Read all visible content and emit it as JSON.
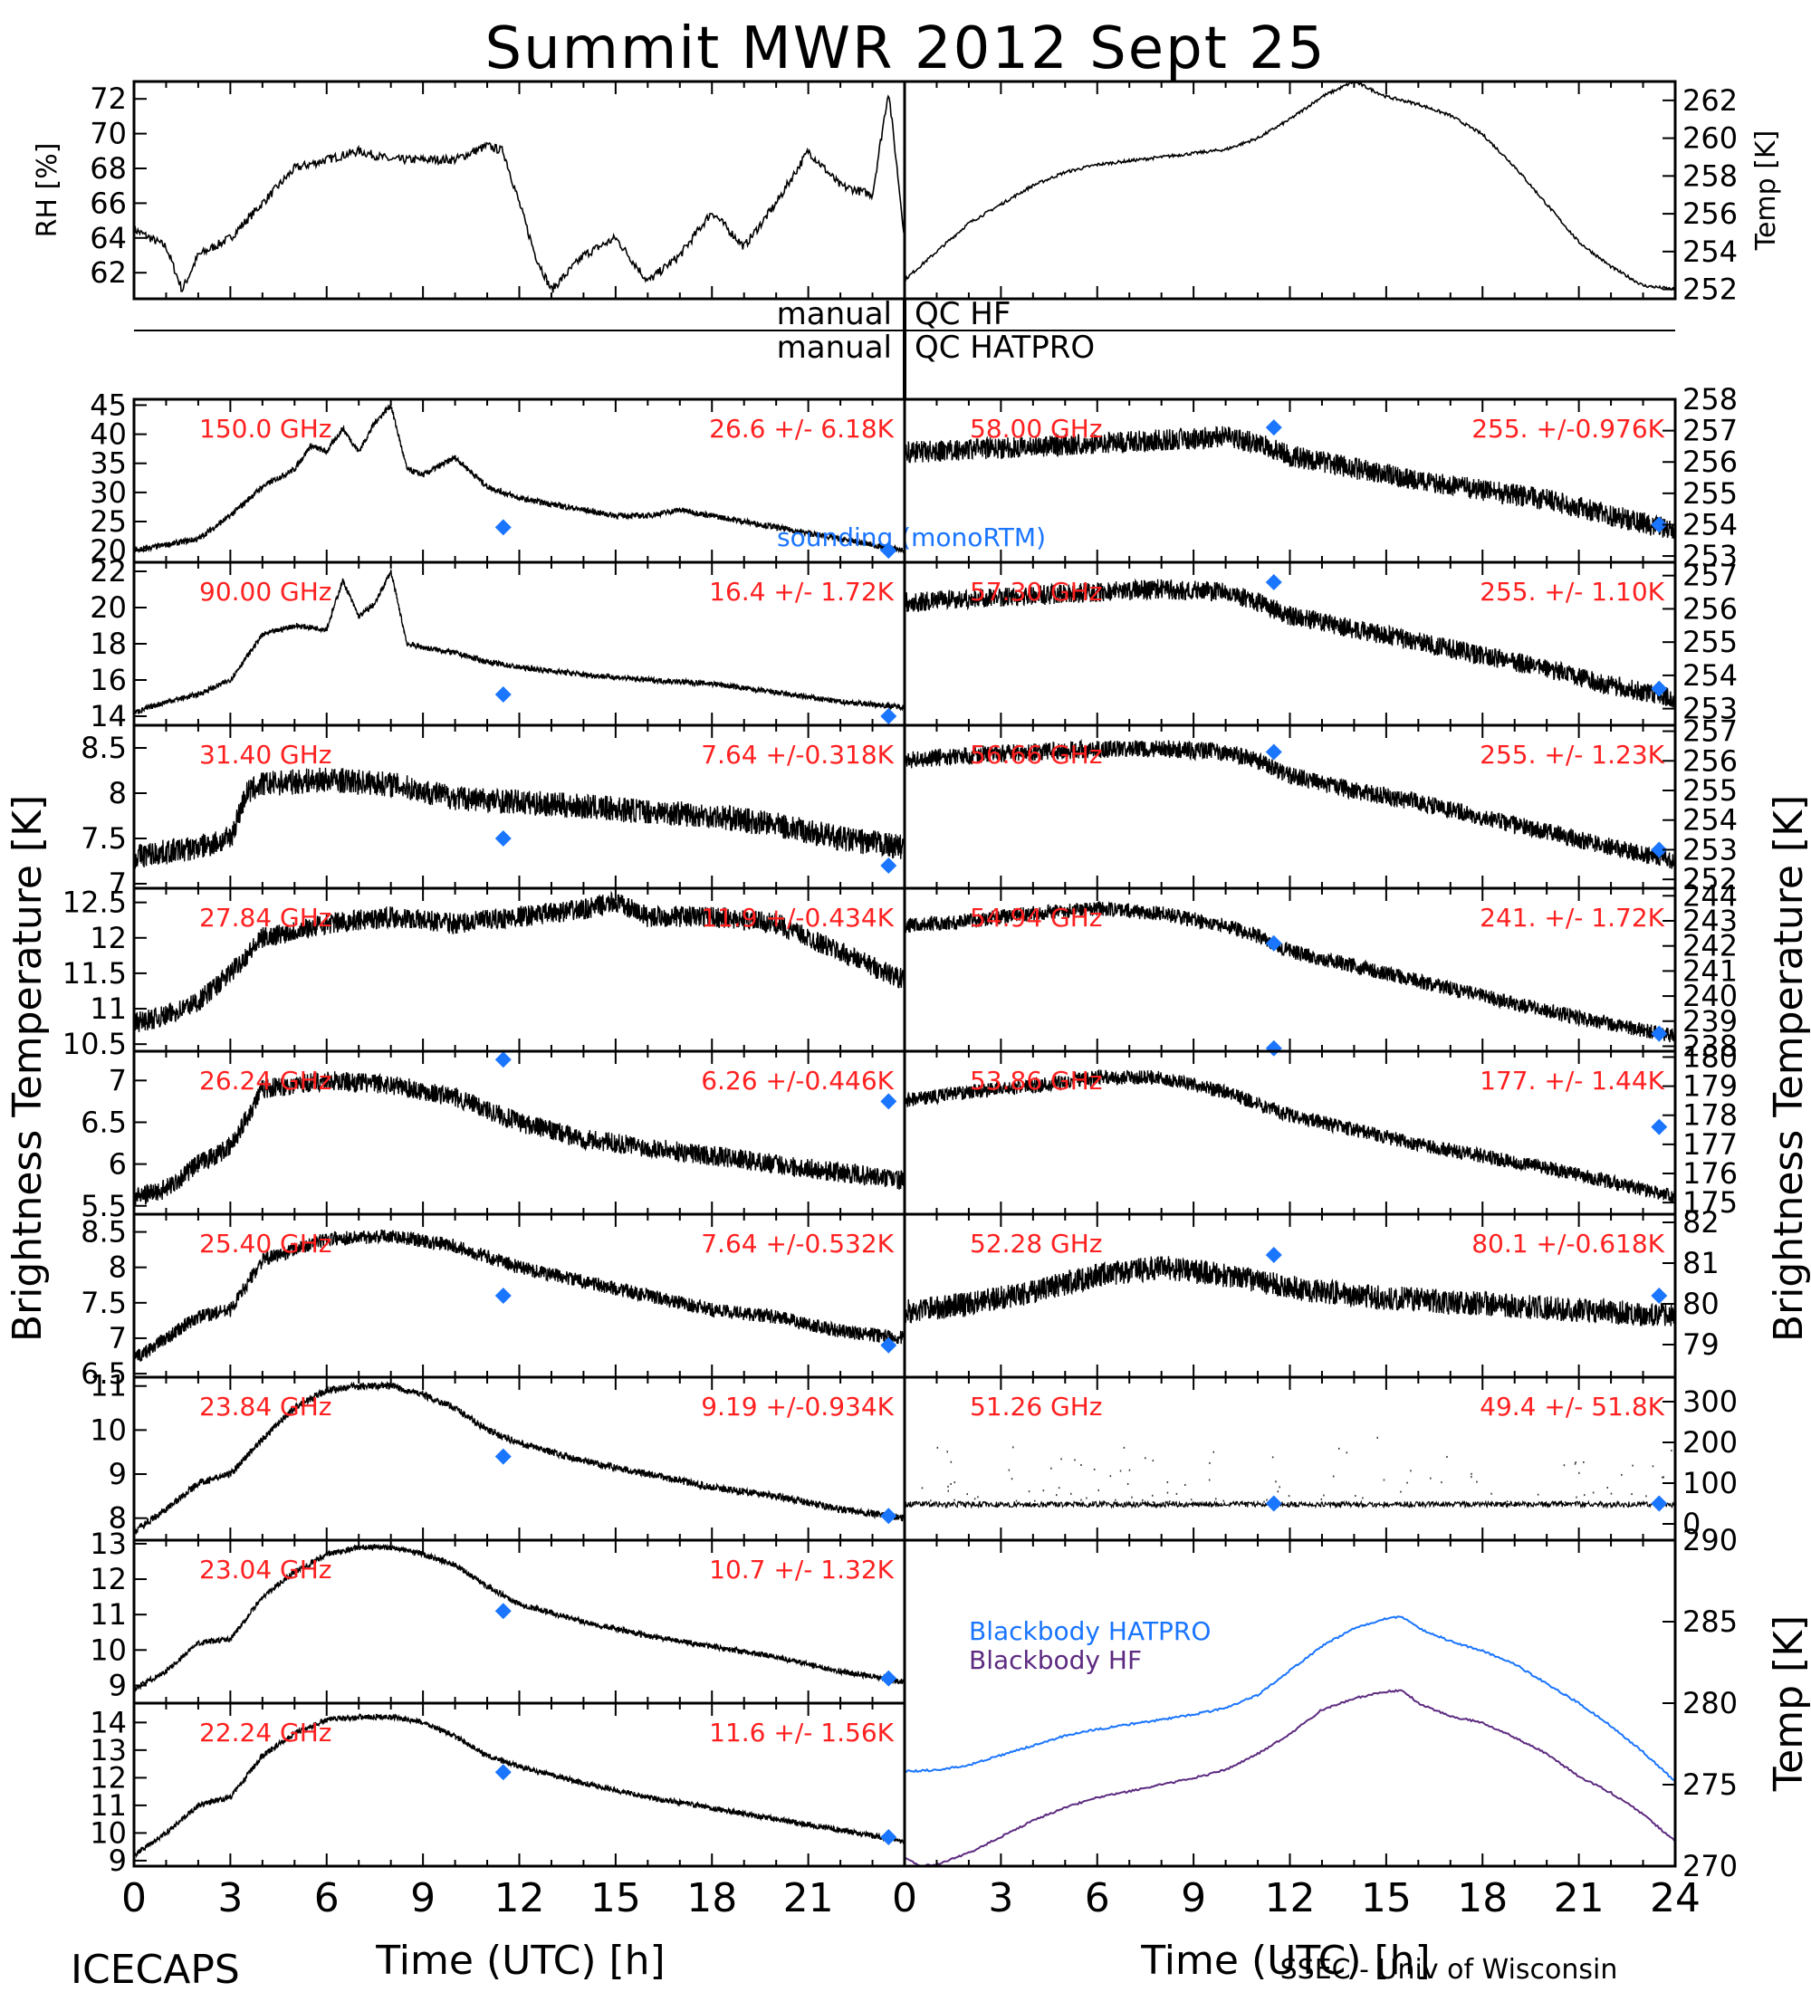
{
  "title": "Summit MWR 2012 Sept 25",
  "qc_labels": [
    {
      "left": "manual",
      "right": "QC HF"
    },
    {
      "left": "manual",
      "right": "QC HATPRO"
    }
  ],
  "footer": {
    "left_label": "ICECAPS",
    "xlabel_left": "Time (UTC) [h]",
    "xlabel_right": "Time (UTC) [h]",
    "credit": "SSEC - Univ of Wisconsin"
  },
  "side_labels": {
    "left": "Brightness Temperature [K]",
    "right": "Brightness Temperature [K]"
  },
  "legend": {
    "sounding": "sounding (monoRTM)",
    "blackbody_hatpro": "Blackbody HATPRO",
    "blackbody_hf": "Blackbody HF"
  },
  "colors": {
    "series": "#000000",
    "sounding": "#1a75ff",
    "stats_text": "#ff2020",
    "blackbody_hatpro": "#1a75ff",
    "blackbody_hf": "#5c2a80"
  },
  "chart_data": [
    {
      "type": "line",
      "id": "rh",
      "ylabel": "RH [%]",
      "xlim": [
        0,
        24
      ],
      "ylim": [
        60.5,
        73
      ],
      "yticks": [
        62,
        64,
        66,
        68,
        70,
        72
      ],
      "x": [
        0,
        1,
        1.5,
        2,
        3,
        4,
        5,
        6,
        7,
        8,
        9,
        10,
        11,
        11.5,
        12,
        12.5,
        13,
        14,
        15,
        16,
        17,
        18,
        19,
        20,
        21,
        22,
        23,
        23.5,
        24
      ],
      "y": [
        64.5,
        63.5,
        61,
        63,
        64,
        66,
        68,
        68.5,
        69,
        68.5,
        68.5,
        68.5,
        69.3,
        69,
        66,
        63,
        61,
        63,
        64,
        61.5,
        63,
        65.5,
        63.5,
        66,
        69,
        67,
        66.5,
        72.5,
        64
      ]
    },
    {
      "type": "line",
      "id": "temp",
      "ylabel": "Temp [K]",
      "xlim": [
        0,
        24
      ],
      "ylim": [
        251.5,
        263
      ],
      "yticks": [
        252,
        254,
        256,
        258,
        260,
        262
      ],
      "x": [
        0,
        1,
        2,
        3,
        4,
        5,
        6,
        7,
        8,
        9,
        10,
        11,
        12,
        13,
        14,
        15,
        16,
        17,
        18,
        19,
        20,
        21,
        22,
        23,
        24
      ],
      "y": [
        252.5,
        254,
        255.5,
        256.5,
        257.5,
        258.2,
        258.6,
        258.8,
        259,
        259.2,
        259.4,
        260,
        261,
        262.2,
        263,
        262.2,
        261.8,
        261.2,
        260.2,
        258.5,
        256.5,
        254.5,
        253.2,
        252.2,
        252
      ]
    },
    {
      "type": "line",
      "id": "ch150",
      "label": "150.0 GHz",
      "stats": "26.6 +/- 6.18K",
      "xlim": [
        0,
        24
      ],
      "ylim": [
        18,
        46
      ],
      "yticks": [
        20,
        25,
        30,
        35,
        40,
        45
      ],
      "noise": 0.5,
      "x": [
        0,
        1,
        2,
        3,
        4,
        5,
        5.5,
        6,
        6.5,
        7,
        7.5,
        8,
        8.5,
        9,
        10,
        11,
        12,
        13,
        14,
        15,
        16,
        17,
        18,
        19,
        20,
        21,
        22,
        23,
        24
      ],
      "y": [
        20,
        21,
        22,
        26,
        31,
        34,
        38,
        37,
        41,
        37,
        42,
        45,
        34,
        33,
        36,
        31,
        29,
        28,
        27,
        26,
        26,
        27,
        26,
        25,
        24,
        23,
        22,
        21,
        20
      ],
      "sounding": {
        "x": [
          11.5,
          23.5
        ],
        "y": [
          24,
          20
        ]
      }
    },
    {
      "type": "line",
      "id": "ch90",
      "label": "90.00 GHz",
      "stats": "16.4 +/- 1.72K",
      "xlim": [
        0,
        24
      ],
      "ylim": [
        13.5,
        22.5
      ],
      "yticks": [
        14,
        16,
        18,
        20,
        22
      ],
      "noise": 0.15,
      "x": [
        0,
        1,
        2,
        3,
        4,
        5,
        6,
        6.5,
        7,
        7.5,
        8,
        8.5,
        9,
        10,
        11,
        12,
        14,
        16,
        18,
        20,
        22,
        24
      ],
      "y": [
        14.2,
        14.8,
        15.2,
        16,
        18.5,
        19,
        18.8,
        21.5,
        19.5,
        20.2,
        22,
        18,
        17.8,
        17.5,
        17,
        16.7,
        16.3,
        16,
        15.8,
        15.3,
        14.8,
        14.5
      ],
      "sounding": {
        "x": [
          11.5,
          23.5
        ],
        "y": [
          15.2,
          14
        ]
      }
    },
    {
      "type": "line",
      "id": "ch3140",
      "label": "31.40 GHz",
      "stats": "7.64 +/-0.318K",
      "xlim": [
        0,
        24
      ],
      "ylim": [
        6.95,
        8.75
      ],
      "yticks": [
        7.0,
        7.5,
        8.0,
        8.5
      ],
      "noise": 0.14,
      "x": [
        0,
        1,
        2,
        3,
        3.5,
        4,
        6,
        8,
        10,
        12,
        14,
        16,
        18,
        20,
        22,
        24
      ],
      "y": [
        7.3,
        7.35,
        7.4,
        7.5,
        8.0,
        8.1,
        8.15,
        8.1,
        7.95,
        7.9,
        7.85,
        7.8,
        7.75,
        7.65,
        7.5,
        7.4
      ],
      "sounding": {
        "x": [
          11.5,
          23.5
        ],
        "y": [
          7.5,
          7.2
        ]
      }
    },
    {
      "type": "line",
      "id": "ch2784",
      "label": "27.84 GHz",
      "stats": "11.9 +/-0.434K",
      "xlim": [
        0,
        24
      ],
      "ylim": [
        10.4,
        12.7
      ],
      "yticks": [
        10.5,
        11.0,
        11.5,
        12.0,
        12.5
      ],
      "noise": 0.15,
      "x": [
        0,
        1,
        2,
        3,
        4,
        6,
        8,
        10,
        12,
        14,
        15,
        16,
        18,
        20,
        22,
        24
      ],
      "y": [
        10.8,
        10.9,
        11.1,
        11.5,
        12.0,
        12.2,
        12.3,
        12.2,
        12.3,
        12.4,
        12.5,
        12.3,
        12.3,
        12.2,
        11.8,
        11.4
      ]
    },
    {
      "type": "line",
      "id": "ch2624",
      "label": "26.24 GHz",
      "stats": "6.26 +/-0.446K",
      "xlim": [
        0,
        24
      ],
      "ylim": [
        5.4,
        7.35
      ],
      "yticks": [
        5.5,
        6.0,
        6.5,
        7.0
      ],
      "noise": 0.12,
      "x": [
        0,
        1,
        2,
        3,
        4,
        6,
        8,
        10,
        12,
        14,
        16,
        18,
        20,
        22,
        24
      ],
      "y": [
        5.6,
        5.7,
        6.0,
        6.2,
        6.9,
        7.0,
        6.95,
        6.8,
        6.5,
        6.3,
        6.2,
        6.1,
        6.0,
        5.9,
        5.8
      ],
      "sounding": {
        "x": [
          11.5,
          23.5
        ],
        "y": [
          7.25,
          6.75
        ]
      }
    },
    {
      "type": "line",
      "id": "ch2540",
      "label": "25.40 GHz",
      "stats": "7.64 +/-0.532K",
      "xlim": [
        0,
        24
      ],
      "ylim": [
        6.45,
        8.75
      ],
      "yticks": [
        6.5,
        7.0,
        7.5,
        8.0,
        8.5
      ],
      "noise": 0.1,
      "x": [
        0,
        1,
        2,
        3,
        4,
        6,
        8,
        10,
        12,
        14,
        16,
        18,
        20,
        22,
        24
      ],
      "y": [
        6.7,
        7.0,
        7.3,
        7.4,
        8.1,
        8.4,
        8.45,
        8.3,
        8.0,
        7.8,
        7.6,
        7.4,
        7.3,
        7.1,
        7.0
      ],
      "sounding": {
        "x": [
          11.5,
          23.5
        ],
        "y": [
          7.6,
          6.9
        ]
      }
    },
    {
      "type": "line",
      "id": "ch2384",
      "label": "23.84 GHz",
      "stats": "9.19 +/-0.934K",
      "xlim": [
        0,
        24
      ],
      "ylim": [
        7.5,
        11.2
      ],
      "yticks": [
        8,
        9,
        10,
        11
      ],
      "noise": 0.08,
      "x": [
        0,
        1,
        2,
        3,
        4,
        5,
        6,
        7,
        8,
        9,
        10,
        11,
        12,
        14,
        16,
        18,
        20,
        22,
        24
      ],
      "y": [
        7.7,
        8.2,
        8.8,
        9.0,
        9.8,
        10.5,
        10.9,
        11.0,
        11.0,
        10.8,
        10.5,
        10.0,
        9.7,
        9.3,
        9.0,
        8.7,
        8.5,
        8.2,
        8.0
      ],
      "sounding": {
        "x": [
          11.5,
          23.5
        ],
        "y": [
          9.4,
          8.05
        ]
      }
    },
    {
      "type": "line",
      "id": "ch2304",
      "label": "23.04 GHz",
      "stats": "10.7 +/- 1.32K",
      "xlim": [
        0,
        24
      ],
      "ylim": [
        8.5,
        13.1
      ],
      "yticks": [
        9,
        10,
        11,
        12,
        13
      ],
      "noise": 0.08,
      "x": [
        0,
        1,
        2,
        3,
        4,
        5,
        6,
        7,
        8,
        9,
        10,
        11,
        12,
        14,
        16,
        18,
        20,
        22,
        24
      ],
      "y": [
        8.9,
        9.4,
        10.2,
        10.3,
        11.5,
        12.2,
        12.7,
        12.9,
        12.9,
        12.7,
        12.4,
        11.8,
        11.3,
        10.8,
        10.4,
        10.1,
        9.8,
        9.4,
        9.1
      ],
      "sounding": {
        "x": [
          11.5,
          23.5
        ],
        "y": [
          11.1,
          9.2
        ]
      }
    },
    {
      "type": "line",
      "id": "ch2224",
      "label": "22.24 GHz",
      "stats": "11.6 +/- 1.56K",
      "xlim": [
        0,
        24
      ],
      "ylim": [
        8.8,
        14.7
      ],
      "yticks": [
        9,
        10,
        11,
        12,
        13,
        14
      ],
      "noise": 0.1,
      "x": [
        0,
        1,
        2,
        3,
        4,
        5,
        6,
        7,
        8,
        9,
        10,
        11,
        12,
        14,
        16,
        18,
        20,
        22,
        24
      ],
      "y": [
        9.2,
        10.0,
        11.0,
        11.3,
        12.8,
        13.6,
        14.1,
        14.2,
        14.2,
        14.0,
        13.5,
        12.8,
        12.4,
        11.8,
        11.3,
        10.9,
        10.5,
        10.1,
        9.7
      ],
      "sounding": {
        "x": [
          11.5,
          23.5
        ],
        "y": [
          12.2,
          9.85
        ]
      }
    },
    {
      "type": "line",
      "id": "ch5800",
      "label": "58.00 GHz",
      "stats": "255. +/-0.976K",
      "xlim": [
        0,
        24
      ],
      "ylim": [
        252.8,
        258
      ],
      "yticks": [
        253,
        254,
        255,
        256,
        257,
        258
      ],
      "noise": 0.35,
      "x": [
        0,
        2,
        4,
        6,
        8,
        10,
        11,
        12,
        14,
        16,
        18,
        20,
        22,
        24
      ],
      "y": [
        256.3,
        256.4,
        256.5,
        256.6,
        256.7,
        256.8,
        256.6,
        256.2,
        255.8,
        255.4,
        255.1,
        254.8,
        254.3,
        253.8
      ],
      "sounding": {
        "x": [
          11.5,
          23.5
        ],
        "y": [
          257.1,
          254
        ]
      }
    },
    {
      "type": "line",
      "id": "ch5730",
      "label": "57.30 GHz",
      "stats": "255. +/- 1.10K",
      "xlim": [
        0,
        24
      ],
      "ylim": [
        252.5,
        257.4
      ],
      "yticks": [
        253,
        254,
        255,
        256,
        257
      ],
      "noise": 0.3,
      "x": [
        0,
        2,
        4,
        6,
        8,
        10,
        11,
        12,
        14,
        16,
        18,
        20,
        22,
        24
      ],
      "y": [
        256.2,
        256.3,
        256.4,
        256.5,
        256.6,
        256.5,
        256.2,
        255.8,
        255.4,
        255.0,
        254.6,
        254.2,
        253.7,
        253.3
      ],
      "sounding": {
        "x": [
          11.5,
          23.5
        ],
        "y": [
          256.8,
          253.6
        ]
      }
    },
    {
      "type": "line",
      "id": "ch5666",
      "label": "56.66 GHz",
      "stats": "255. +/- 1.23K",
      "xlim": [
        0,
        24
      ],
      "ylim": [
        251.7,
        257.2
      ],
      "yticks": [
        252,
        253,
        254,
        255,
        256,
        257
      ],
      "noise": 0.3,
      "x": [
        0,
        2,
        4,
        6,
        8,
        10,
        11,
        12,
        14,
        16,
        18,
        20,
        22,
        24
      ],
      "y": [
        256.0,
        256.2,
        256.3,
        256.4,
        256.4,
        256.3,
        256.0,
        255.5,
        255.0,
        254.6,
        254.1,
        253.6,
        253.1,
        252.6
      ],
      "sounding": {
        "x": [
          11.5,
          23.5
        ],
        "y": [
          256.3,
          253
        ]
      }
    },
    {
      "type": "line",
      "id": "ch5450",
      "label": "54.94 GHz",
      "stats": "241. +/- 1.72K",
      "xlim": [
        0,
        24
      ],
      "ylim": [
        237.8,
        244.3
      ],
      "yticks": [
        238,
        239,
        240,
        241,
        242,
        243,
        244
      ],
      "noise": 0.3,
      "x": [
        0,
        2,
        4,
        6,
        8,
        10,
        11,
        12,
        14,
        16,
        18,
        20,
        22,
        24
      ],
      "y": [
        242.8,
        243.0,
        243.3,
        243.5,
        243.3,
        242.8,
        242.4,
        241.8,
        241.2,
        240.6,
        240.0,
        239.4,
        238.9,
        238.4
      ],
      "sounding": {
        "x": [
          11.5,
          23.5
        ],
        "y": [
          242.1,
          238.5
        ]
      }
    },
    {
      "type": "line",
      "id": "ch5386",
      "label": "53.86 GHz",
      "stats": "177. +/- 1.44K",
      "xlim": [
        0,
        24
      ],
      "ylim": [
        174.6,
        180.2
      ],
      "yticks": [
        175,
        176,
        177,
        178,
        179,
        180
      ],
      "noise": 0.25,
      "x": [
        0,
        2,
        4,
        6,
        8,
        10,
        12,
        14,
        16,
        18,
        20,
        22,
        24
      ],
      "y": [
        178.5,
        178.8,
        179.0,
        179.3,
        179.3,
        178.8,
        178.0,
        177.5,
        177.0,
        176.6,
        176.2,
        175.7,
        175.2
      ],
      "sounding": {
        "x": [
          11.5,
          23.5
        ],
        "y": [
          180.3,
          177.6
        ]
      }
    },
    {
      "type": "line",
      "id": "ch5228",
      "label": "52.28 GHz",
      "stats": "80.1 +/-0.618K",
      "xlim": [
        0,
        24
      ],
      "ylim": [
        78.2,
        82.2
      ],
      "yticks": [
        79,
        80,
        81,
        82
      ],
      "noise": 0.3,
      "x": [
        0,
        2,
        4,
        6,
        8,
        10,
        12,
        14,
        16,
        18,
        20,
        22,
        24
      ],
      "y": [
        79.8,
        80.0,
        80.3,
        80.7,
        80.9,
        80.7,
        80.4,
        80.2,
        80.1,
        80.0,
        79.9,
        79.8,
        79.7
      ],
      "sounding": {
        "x": [
          11.5,
          23.5
        ],
        "y": [
          81.2,
          80.2
        ]
      }
    },
    {
      "type": "scatter",
      "id": "ch5126",
      "label": "51.26 GHz",
      "stats": "49.4 +/- 51.8K",
      "xlim": [
        0,
        24
      ],
      "ylim": [
        -40,
        360
      ],
      "yticks": [
        0,
        100,
        200,
        300
      ],
      "baseline": 48,
      "x": [
        0,
        24
      ],
      "y": [
        48,
        48
      ],
      "sounding": {
        "x": [
          11.5,
          23.5
        ],
        "y": [
          50,
          50
        ]
      }
    },
    {
      "type": "line",
      "id": "blackbody",
      "ylabel": "Temp [K]",
      "xlim": [
        0,
        24
      ],
      "ylim": [
        270,
        290
      ],
      "yticks": [
        270,
        275,
        280,
        285,
        290
      ],
      "series": [
        {
          "name": "Blackbody HATPRO",
          "x": [
            0,
            1,
            2,
            3,
            4,
            5,
            6,
            7,
            8,
            9,
            10,
            11,
            12,
            13,
            14,
            15,
            15.5,
            16,
            17,
            18,
            19,
            20,
            21,
            22,
            23,
            24
          ],
          "y": [
            275.8,
            275.9,
            276.2,
            276.8,
            277.4,
            278.0,
            278.4,
            278.7,
            279.0,
            279.3,
            279.7,
            280.5,
            282,
            283.5,
            284.6,
            285.2,
            285.3,
            284.6,
            283.8,
            283.2,
            282.4,
            281.2,
            280,
            278.6,
            277.0,
            275.2
          ]
        },
        {
          "name": "Blackbody HF",
          "x": [
            0,
            0.5,
            1,
            2,
            3,
            4,
            5,
            6,
            7,
            8,
            9,
            10,
            11,
            12,
            13,
            14,
            15,
            15.5,
            16,
            17,
            18,
            19,
            20,
            21,
            22,
            23,
            24
          ],
          "y": [
            270.5,
            270.0,
            270.1,
            270.8,
            271.8,
            272.8,
            273.6,
            274.2,
            274.6,
            275.0,
            275.4,
            275.9,
            276.9,
            278.1,
            279.6,
            280.3,
            280.7,
            280.8,
            280.0,
            279.2,
            278.8,
            277.9,
            276.9,
            275.5,
            274.5,
            273.2,
            271.5
          ]
        }
      ]
    }
  ],
  "xticks": [
    0,
    3,
    6,
    9,
    12,
    15,
    18,
    21,
    24
  ]
}
